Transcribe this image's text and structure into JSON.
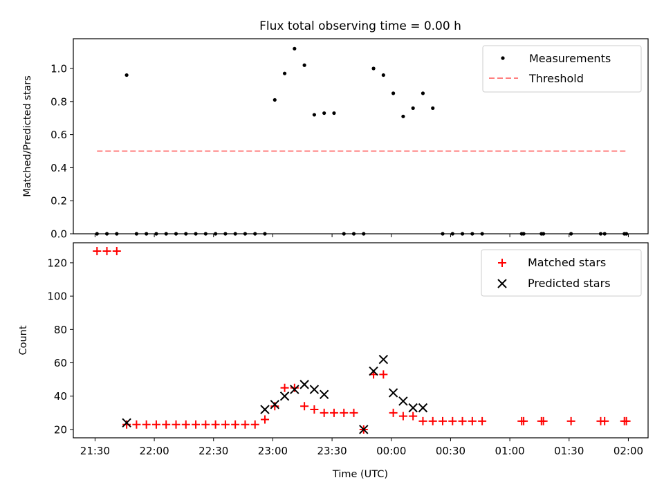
{
  "chart_data": [
    {
      "type": "scatter",
      "title": "Flux total observing time = 0.00 h",
      "xlabel": "",
      "ylabel": "Matched/Predicted stars",
      "ylim": [
        0,
        1.18
      ],
      "yticks": [
        "0.0",
        "0.2",
        "0.4",
        "0.6",
        "0.8",
        "1.0"
      ],
      "legend_position": "upper-right",
      "series": [
        {
          "name": "Measurements",
          "marker": "dot",
          "color": "#000000",
          "x": [
            "21:31",
            "21:36",
            "21:41",
            "21:46",
            "21:51",
            "21:56",
            "22:01",
            "22:06",
            "22:11",
            "22:16",
            "22:21",
            "22:26",
            "22:31",
            "22:36",
            "22:41",
            "22:46",
            "22:51",
            "22:56",
            "23:01",
            "23:06",
            "23:11",
            "23:16",
            "23:21",
            "23:26",
            "23:31",
            "23:36",
            "23:41",
            "23:46",
            "23:51",
            "23:56",
            "00:01",
            "00:06",
            "00:11",
            "00:16",
            "00:21",
            "00:26",
            "00:31",
            "00:36",
            "00:41",
            "00:46",
            "01:06",
            "01:07",
            "01:16",
            "01:17",
            "01:31",
            "01:46",
            "01:48",
            "01:58",
            "01:59"
          ],
          "values": [
            0,
            0,
            0,
            0.96,
            0,
            0,
            0,
            0,
            0,
            0,
            0,
            0,
            0,
            0,
            0,
            0,
            0,
            0,
            0.81,
            0.97,
            1.12,
            1.02,
            0.72,
            0.73,
            0.73,
            0,
            0,
            0,
            1.0,
            0.96,
            0.85,
            0.71,
            0.76,
            0.85,
            0.76,
            0,
            0,
            0,
            0,
            0,
            0,
            0,
            0,
            0,
            0,
            0,
            0,
            0,
            0
          ]
        },
        {
          "name": "Threshold",
          "marker": "dashed-line",
          "color": "#ff7f7f",
          "x": [
            "21:31",
            "01:59"
          ],
          "values": [
            0.5,
            0.5
          ]
        }
      ]
    },
    {
      "type": "scatter",
      "title": "",
      "xlabel": "Time (UTC)",
      "ylabel": "Count",
      "ylim": [
        15,
        132
      ],
      "yticks": [
        "20",
        "40",
        "60",
        "80",
        "100",
        "120"
      ],
      "xticks": [
        "21:30",
        "22:00",
        "22:30",
        "23:00",
        "23:30",
        "00:00",
        "00:30",
        "01:00",
        "01:30",
        "02:00"
      ],
      "legend_position": "upper-right",
      "series": [
        {
          "name": "Matched stars",
          "marker": "plus",
          "color": "#ff0000",
          "x": [
            "21:31",
            "21:36",
            "21:41",
            "21:46",
            "21:51",
            "21:56",
            "22:01",
            "22:06",
            "22:11",
            "22:16",
            "22:21",
            "22:26",
            "22:31",
            "22:36",
            "22:41",
            "22:46",
            "22:51",
            "22:56",
            "23:01",
            "23:06",
            "23:11",
            "23:16",
            "23:21",
            "23:26",
            "23:31",
            "23:36",
            "23:41",
            "23:46",
            "23:51",
            "23:56",
            "00:01",
            "00:06",
            "00:11",
            "00:16",
            "00:21",
            "00:26",
            "00:31",
            "00:36",
            "00:41",
            "00:46",
            "01:06",
            "01:07",
            "01:16",
            "01:17",
            "01:31",
            "01:46",
            "01:48",
            "01:58",
            "01:59"
          ],
          "values": [
            127,
            127,
            127,
            23,
            23,
            23,
            23,
            23,
            23,
            23,
            23,
            23,
            23,
            23,
            23,
            23,
            23,
            26,
            34,
            45,
            45,
            34,
            32,
            30,
            30,
            30,
            30,
            20,
            53,
            53,
            30,
            28,
            28,
            25,
            25,
            25,
            25,
            25,
            25,
            25,
            25,
            25,
            25,
            25,
            25,
            25,
            25,
            25,
            25
          ]
        },
        {
          "name": "Predicted stars",
          "marker": "x",
          "color": "#000000",
          "x": [
            "21:46",
            "22:56",
            "23:01",
            "23:06",
            "23:11",
            "23:16",
            "23:21",
            "23:26",
            "23:46",
            "23:51",
            "23:56",
            "00:01",
            "00:06",
            "00:11",
            "00:16"
          ],
          "values": [
            24,
            32,
            35,
            40,
            44,
            47,
            44,
            41,
            20,
            55,
            62,
            42,
            37,
            33,
            33
          ]
        }
      ]
    }
  ]
}
